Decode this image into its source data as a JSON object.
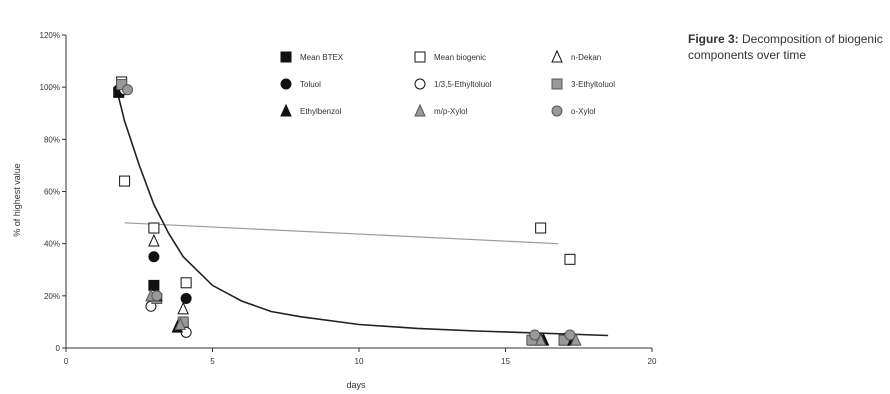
{
  "caption": {
    "label": "Figure 3:",
    "text": "Decomposition of biogenic components over time"
  },
  "chart_data": {
    "type": "scatter",
    "title": "",
    "xlabel": "days",
    "ylabel": "% of highest value",
    "xlim": [
      0,
      20
    ],
    "ylim": [
      0,
      120
    ],
    "x_ticks": [
      0,
      5,
      10,
      15,
      20
    ],
    "y_ticks": [
      "0",
      "20%",
      "40%",
      "60%",
      "80%",
      "100%",
      "120%"
    ],
    "grid": false,
    "legend_position": "top-center",
    "series": [
      {
        "name": "Mean BTEX",
        "marker": "square-filled",
        "color": "#111111",
        "points": [
          [
            1.8,
            98
          ],
          [
            3.0,
            24
          ],
          [
            4.0,
            9
          ],
          [
            16.0,
            3
          ],
          [
            17.0,
            3
          ]
        ]
      },
      {
        "name": "Mean biogenic",
        "marker": "square-open",
        "color": "#111111",
        "points": [
          [
            1.9,
            102
          ],
          [
            2.0,
            64
          ],
          [
            3.0,
            46
          ],
          [
            4.1,
            25
          ],
          [
            16.2,
            46
          ],
          [
            17.2,
            34
          ]
        ]
      },
      {
        "name": "n-Dekan",
        "marker": "triangle-open",
        "color": "#111111",
        "points": [
          [
            3.0,
            41
          ],
          [
            4.0,
            15
          ],
          [
            16.0,
            4
          ],
          [
            17.1,
            4
          ]
        ]
      },
      {
        "name": "Toluol",
        "marker": "circle-filled",
        "color": "#111111",
        "points": [
          [
            1.8,
            99
          ],
          [
            3.0,
            35
          ],
          [
            4.1,
            19
          ],
          [
            16.1,
            4
          ],
          [
            17.1,
            4
          ]
        ]
      },
      {
        "name": "1/3,5-Ethyltoluol",
        "marker": "circle-open",
        "color": "#111111",
        "points": [
          [
            2.0,
            99
          ],
          [
            2.9,
            16
          ],
          [
            4.1,
            6
          ],
          [
            16.2,
            3
          ],
          [
            17.2,
            3
          ]
        ]
      },
      {
        "name": "3-Ethyltoluol",
        "marker": "square-gray",
        "color": "#888888",
        "points": [
          [
            1.9,
            101
          ],
          [
            3.1,
            19
          ],
          [
            4.0,
            10
          ],
          [
            15.9,
            3
          ],
          [
            17.0,
            3
          ]
        ]
      },
      {
        "name": "Ethylbenzol",
        "marker": "triangle-filled",
        "color": "#111111",
        "points": [
          [
            3.1,
            20
          ],
          [
            3.8,
            8
          ],
          [
            16.3,
            3
          ],
          [
            17.3,
            3
          ]
        ]
      },
      {
        "name": "m/p-Xylol",
        "marker": "triangle-gray",
        "color": "#888888",
        "points": [
          [
            2.9,
            20
          ],
          [
            3.9,
            9
          ],
          [
            16.2,
            3
          ],
          [
            17.4,
            3
          ]
        ]
      },
      {
        "name": "o-Xylol",
        "marker": "circle-gray",
        "color": "#888888",
        "points": [
          [
            2.1,
            99
          ],
          [
            3.1,
            20
          ],
          [
            16.0,
            5
          ],
          [
            17.2,
            5
          ]
        ]
      }
    ],
    "trendlines": [
      {
        "kind": "linear",
        "points": [
          [
            2.0,
            48
          ],
          [
            16.8,
            40
          ]
        ],
        "color": "#999999"
      },
      {
        "kind": "exponential",
        "color": "#222222",
        "points": [
          [
            1.8,
            96
          ],
          [
            2.0,
            87
          ],
          [
            2.5,
            70
          ],
          [
            3.0,
            55
          ],
          [
            3.5,
            44
          ],
          [
            4.0,
            35
          ],
          [
            5.0,
            24
          ],
          [
            6.0,
            18
          ],
          [
            7.0,
            14
          ],
          [
            8.0,
            12
          ],
          [
            10.0,
            9
          ],
          [
            12.0,
            7.5
          ],
          [
            14.0,
            6.5
          ],
          [
            16.0,
            5.8
          ],
          [
            18.5,
            4.8
          ]
        ]
      }
    ]
  }
}
